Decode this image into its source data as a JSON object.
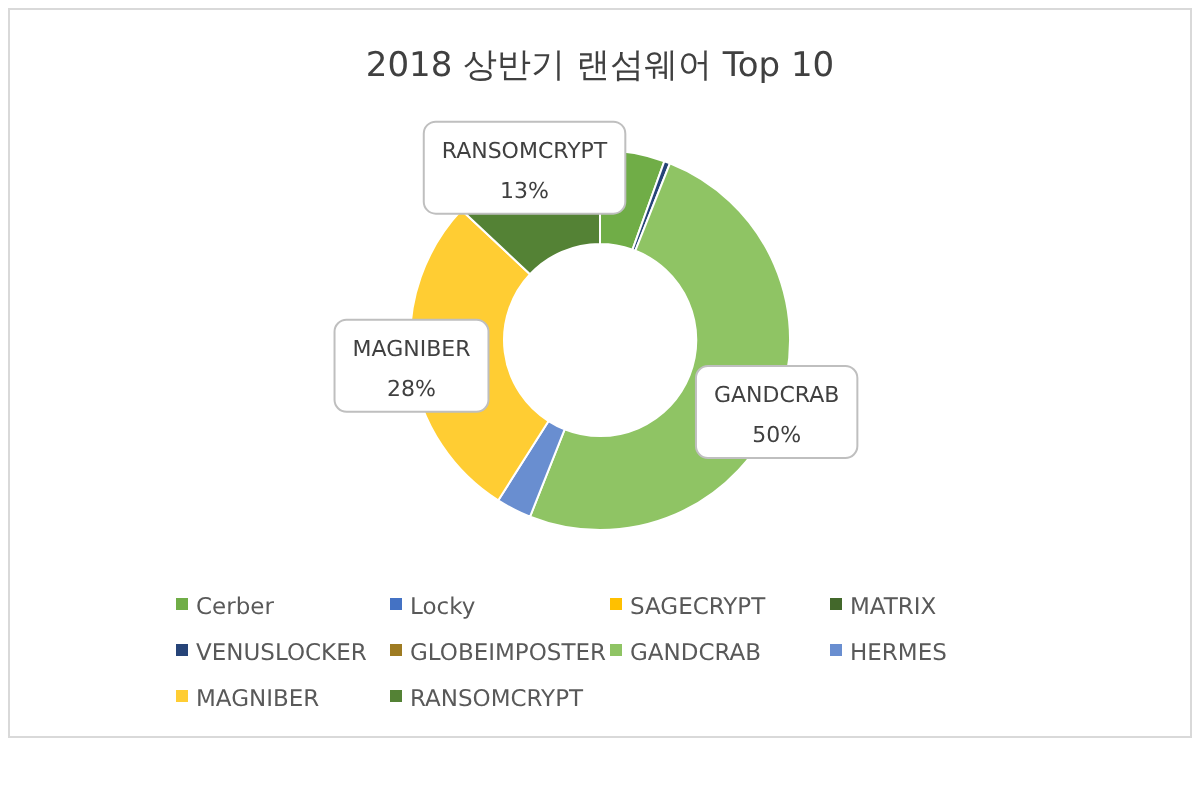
{
  "chart_data": {
    "type": "donut",
    "title": "2018 상반기 랜섬웨어 Top 10",
    "categories": [
      "Cerber",
      "Locky",
      "SAGECRYPT",
      "MATRIX",
      "VENUSLOCKER",
      "GLOBEIMPOSTER",
      "GANDCRAB",
      "HERMES",
      "MAGNIBER",
      "RANSOMCRYPT"
    ],
    "values": [
      5.5,
      0,
      0,
      0,
      0.5,
      0,
      50,
      3,
      28,
      13
    ],
    "colors": [
      "#70ad47",
      "#4472c4",
      "#ffc000",
      "#43682b",
      "#264478",
      "#9e7b22",
      "#8fc464",
      "#698ed0",
      "#ffcd33",
      "#548235"
    ],
    "value_labels": [
      null,
      null,
      null,
      null,
      null,
      null,
      "50%",
      null,
      "28%",
      "13%"
    ],
    "legend": "bottom"
  }
}
